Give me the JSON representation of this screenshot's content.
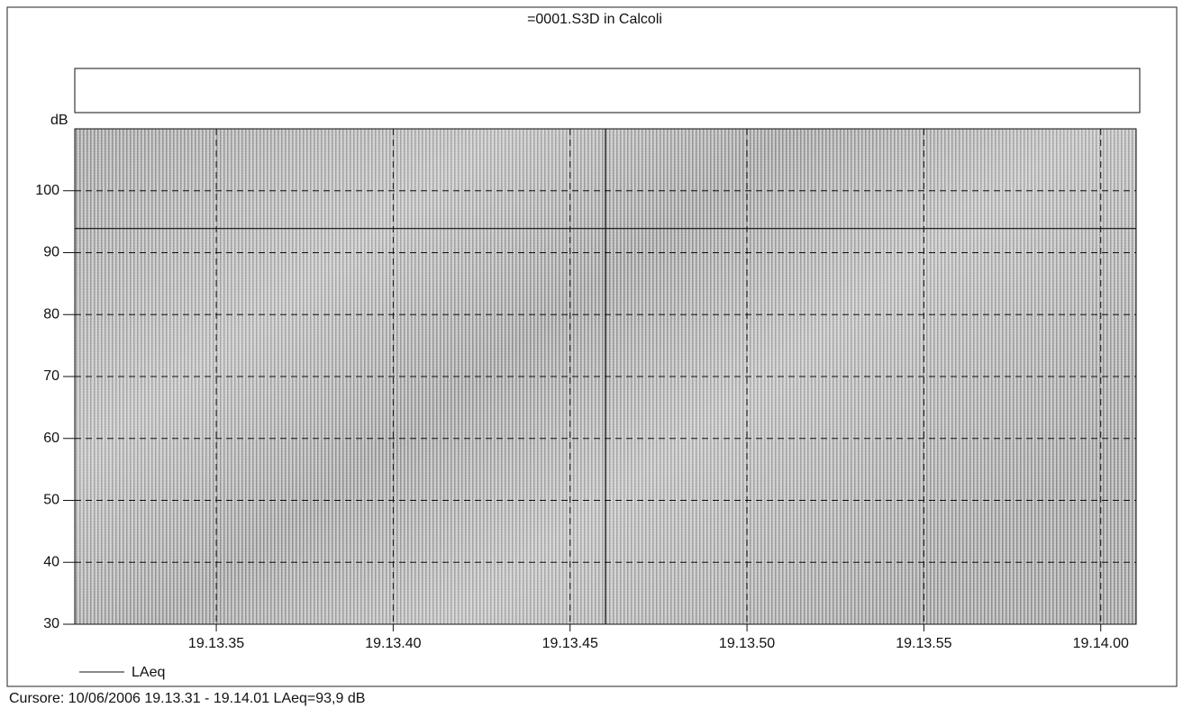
{
  "chart_data": {
    "type": "line",
    "title": "=0001.S3D in Calcoli",
    "y_label": "dB",
    "xlim": [
      31,
      61
    ],
    "xticks": [
      {
        "value": 35,
        "label": "19.13.35"
      },
      {
        "value": 40,
        "label": "19.13.40"
      },
      {
        "value": 45,
        "label": "19.13.45"
      },
      {
        "value": 50,
        "label": "19.13.50"
      },
      {
        "value": 55,
        "label": "19.13.55"
      },
      {
        "value": 60,
        "label": "19.14.00"
      }
    ],
    "ylim": [
      30,
      110
    ],
    "yticks": [
      30,
      40,
      50,
      60,
      70,
      80,
      90,
      100
    ],
    "grid": true,
    "x": [
      31,
      61
    ],
    "series": [
      {
        "name": "LAeq",
        "color": "#111111",
        "values": [
          93.9,
          93.9
        ]
      }
    ],
    "cursor": {
      "x": 46
    },
    "footer": "Cursore: 10/06/2006 19.13.31 - 19.14.01  LAeq=93,9 dB"
  }
}
